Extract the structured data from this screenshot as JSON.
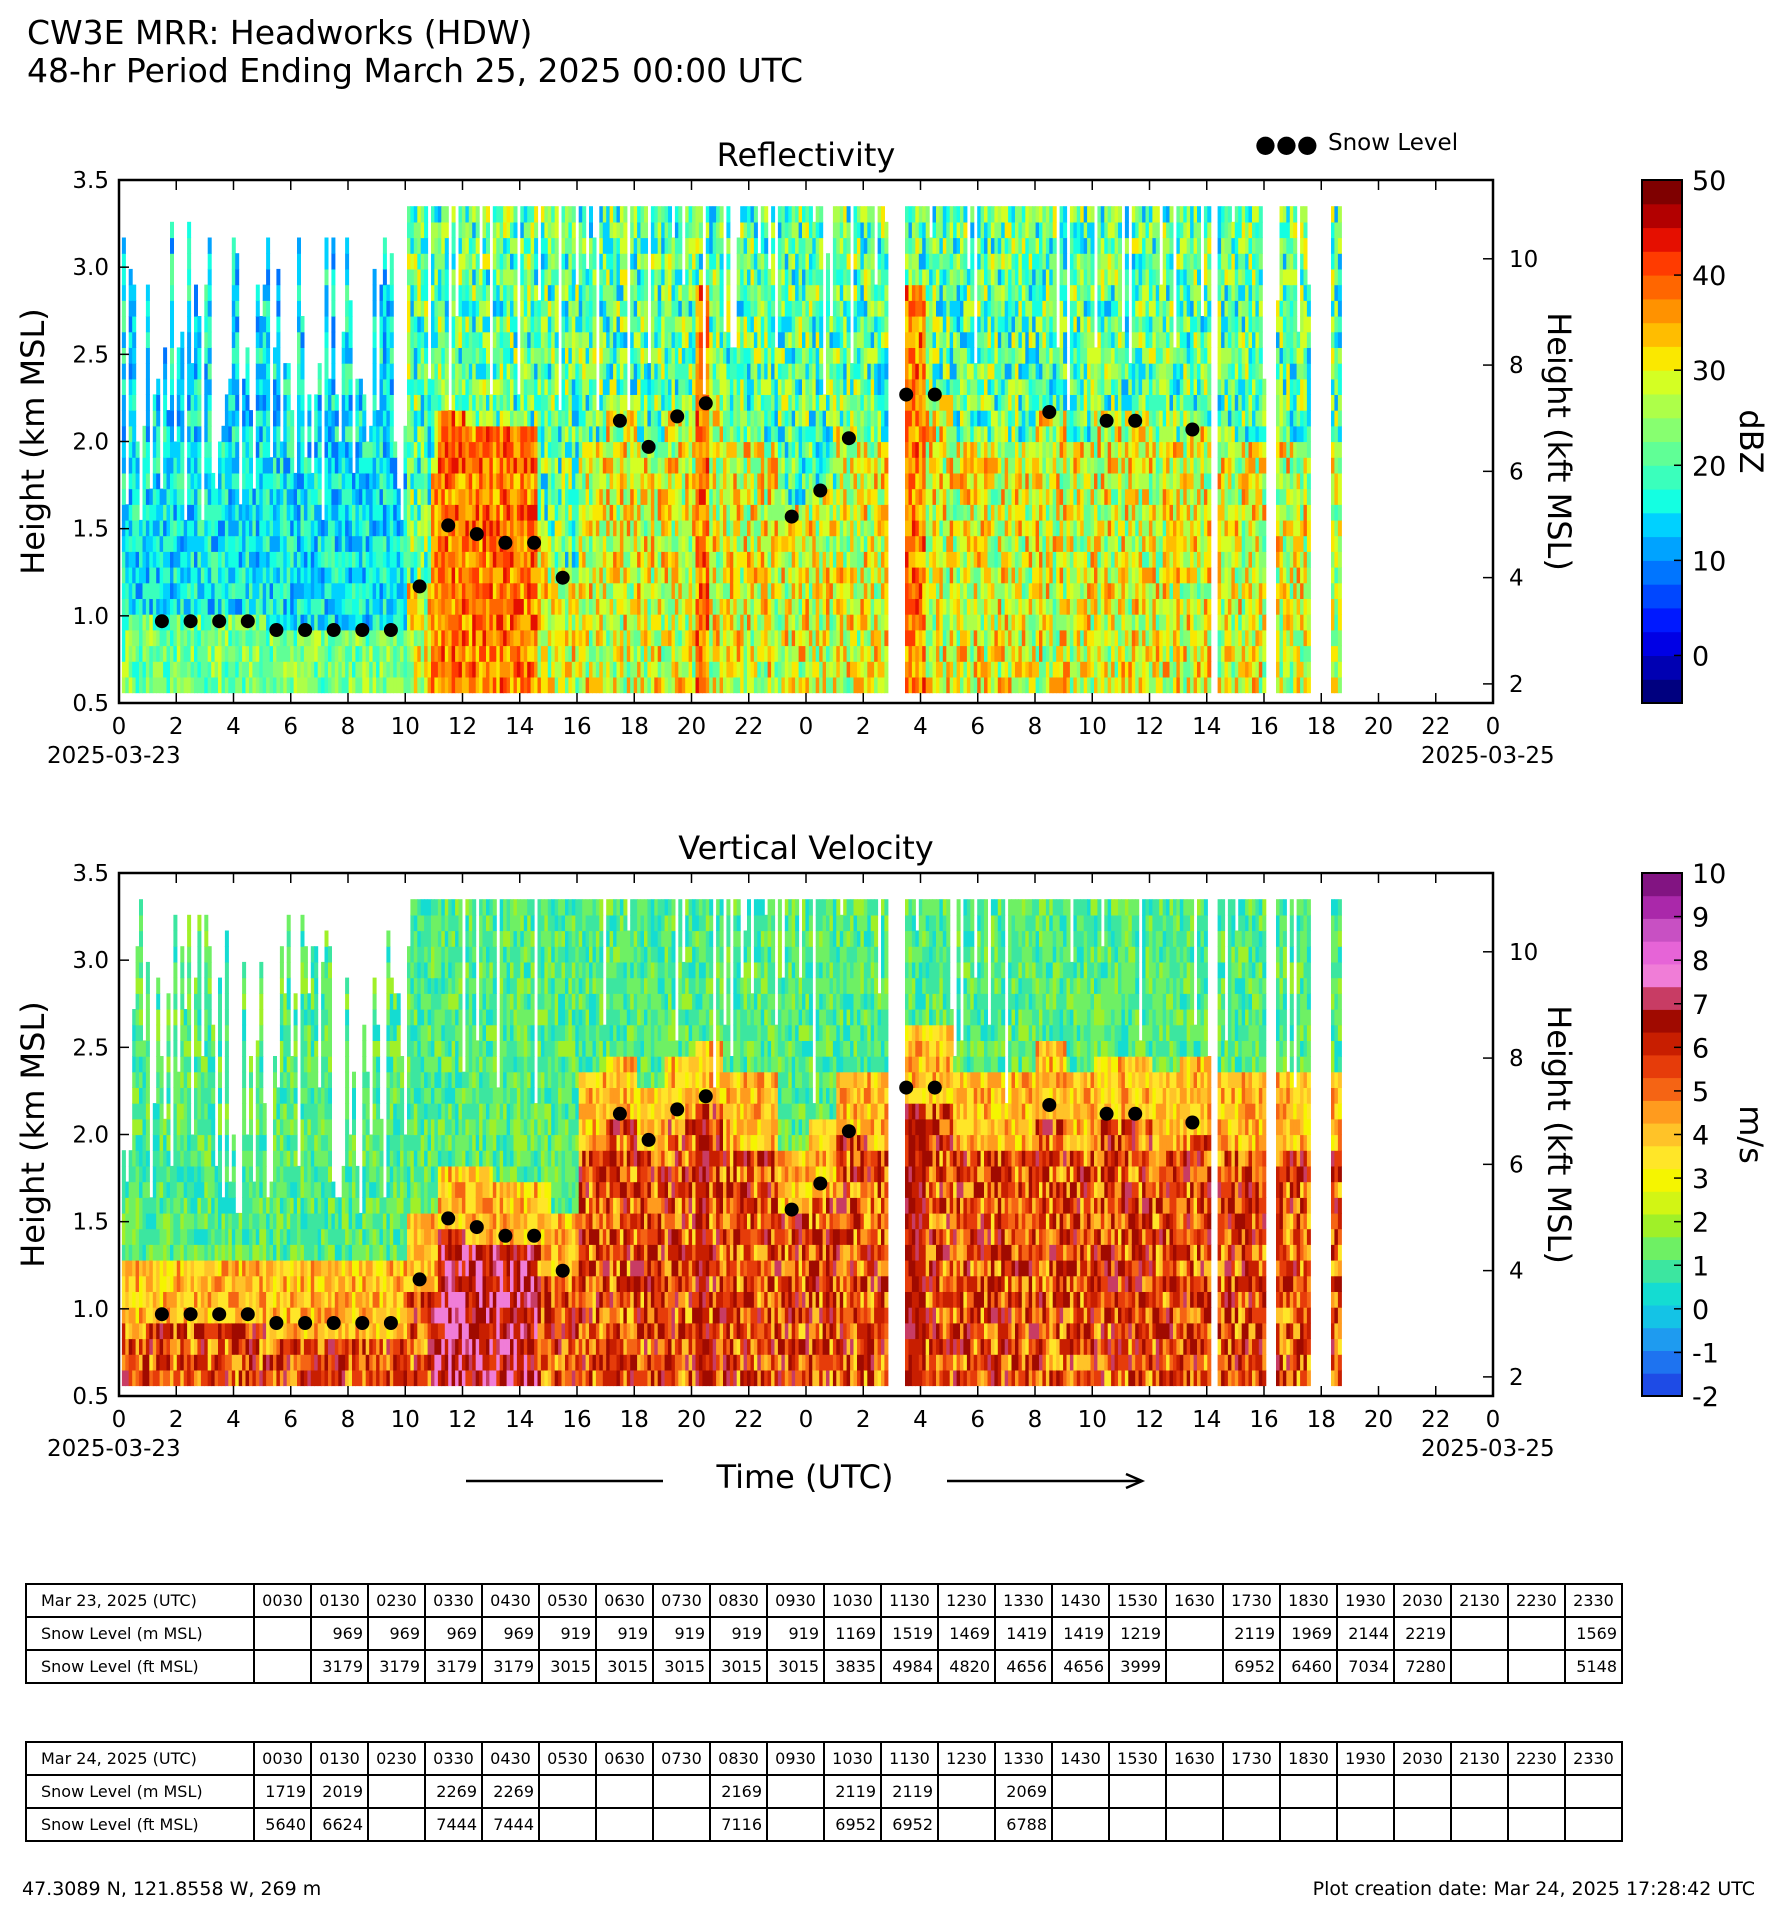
{
  "header": {
    "line1": "CW3E MRR: Headworks (HDW)",
    "line2": "48-hr Period Ending March 25, 2025 00:00 UTC"
  },
  "legend": {
    "marker": "●●●",
    "label": "Snow Level"
  },
  "x_axis": {
    "ticks": [
      "0",
      "2",
      "4",
      "6",
      "8",
      "10",
      "12",
      "14",
      "16",
      "18",
      "20",
      "22",
      "0",
      "2",
      "4",
      "6",
      "8",
      "10",
      "12",
      "14",
      "16",
      "18",
      "20",
      "22",
      "0"
    ],
    "start_date": "2025-03-23",
    "end_date": "2025-03-25",
    "label": "Time (UTC)"
  },
  "chart_data": [
    {
      "type": "heatmap",
      "title": "Reflectivity",
      "ylabel": "Height (km MSL)",
      "ylabel_right": "Height (kft MSL)",
      "ylim": [
        0.5,
        3.5
      ],
      "yticks": [
        "0.5",
        "1.0",
        "1.5",
        "2.0",
        "2.5",
        "3.0",
        "3.5"
      ],
      "yticks_right": [
        "2",
        "4",
        "6",
        "8",
        "10"
      ],
      "xlim_hours": [
        0,
        48
      ],
      "colorbar": {
        "label": "dBZ",
        "range": [
          -5,
          50
        ],
        "ticks": [
          "0",
          "10",
          "20",
          "30",
          "40",
          "50"
        ],
        "colors": [
          "#00007f",
          "#0000b2",
          "#0000e5",
          "#0019ff",
          "#0047ff",
          "#0075ff",
          "#00a3ff",
          "#00d1ff",
          "#14ffe2",
          "#3affbc",
          "#60ff96",
          "#87ff70",
          "#adff49",
          "#d4ff23",
          "#fae800",
          "#ffbd00",
          "#ff9200",
          "#ff6600",
          "#ff3b00",
          "#e50f00",
          "#b20000",
          "#7f0000"
        ]
      },
      "data_gaps_hours": [
        [
          26.8,
          27.4
        ],
        [
          38.1,
          38.3
        ],
        [
          40.1,
          40.7
        ],
        [
          38.9,
          39.3
        ],
        [
          41.5,
          42.4
        ],
        [
          48,
          48
        ]
      ],
      "high_reflectivity_spans_hours": [
        [
          10.8,
          14.6
        ],
        [
          20.1,
          20.6
        ],
        [
          27.3,
          28.1
        ]
      ],
      "note": ""
    },
    {
      "type": "heatmap",
      "title": "Vertical Velocity",
      "ylabel": "Height (km MSL)",
      "ylabel_right": "Height (kft MSL)",
      "ylim": [
        0.5,
        3.5
      ],
      "yticks": [
        "0.5",
        "1.0",
        "1.5",
        "2.0",
        "2.5",
        "3.0",
        "3.5"
      ],
      "yticks_right": [
        "2",
        "4",
        "6",
        "8",
        "10"
      ],
      "xlim_hours": [
        0,
        48
      ],
      "colorbar": {
        "label": "m/s",
        "range": [
          -2,
          10
        ],
        "ticks": [
          "-2",
          "-1",
          "0",
          "1",
          "2",
          "3",
          "4",
          "5",
          "6",
          "7",
          "8",
          "9",
          "10"
        ],
        "colors": [
          "#1e4be6",
          "#1e73f0",
          "#1e9bf0",
          "#14c3e6",
          "#14dcd2",
          "#3ce6a0",
          "#6ef064",
          "#a0f028",
          "#d2f514",
          "#f5f500",
          "#ffe628",
          "#ffc328",
          "#ff9b1e",
          "#f56414",
          "#e63c0a",
          "#c81e00",
          "#a00a00",
          "#c83c64",
          "#f07dd7",
          "#e664d7",
          "#c850c3",
          "#aa28aa",
          "#821482"
        ]
      }
    }
  ],
  "snow_level_series": {
    "name": "Snow Level",
    "hours": [
      1.5,
      2.5,
      3.5,
      4.5,
      5.5,
      6.5,
      7.5,
      8.5,
      9.5,
      10.5,
      11.5,
      12.5,
      13.5,
      14.5,
      15.5,
      17.5,
      18.5,
      19.5,
      20.5,
      23.5,
      24.5,
      25.5,
      27.5,
      28.5,
      32.5,
      34.5,
      35.5,
      37.5
    ],
    "km": [
      0.969,
      0.969,
      0.969,
      0.969,
      0.919,
      0.919,
      0.919,
      0.919,
      0.919,
      1.169,
      1.519,
      1.469,
      1.419,
      1.419,
      1.219,
      2.119,
      1.969,
      2.144,
      2.219,
      1.569,
      1.719,
      2.019,
      2.269,
      2.269,
      2.169,
      2.119,
      2.119,
      2.069
    ]
  },
  "tables": [
    {
      "date_label": "Mar 23, 2025 (UTC)",
      "times": [
        "0030",
        "0130",
        "0230",
        "0330",
        "0430",
        "0530",
        "0630",
        "0730",
        "0830",
        "0930",
        "1030",
        "1130",
        "1230",
        "1330",
        "1430",
        "1530",
        "1630",
        "1730",
        "1830",
        "1930",
        "2030",
        "2130",
        "2230",
        "2330"
      ],
      "m_label": "Snow Level (m MSL)",
      "m": [
        "",
        "969",
        "969",
        "969",
        "969",
        "919",
        "919",
        "919",
        "919",
        "919",
        "1169",
        "1519",
        "1469",
        "1419",
        "1419",
        "1219",
        "",
        "2119",
        "1969",
        "2144",
        "2219",
        "",
        "",
        "1569"
      ],
      "ft_label": "Snow Level (ft MSL)",
      "ft": [
        "",
        "3179",
        "3179",
        "3179",
        "3179",
        "3015",
        "3015",
        "3015",
        "3015",
        "3015",
        "3835",
        "4984",
        "4820",
        "4656",
        "4656",
        "3999",
        "",
        "6952",
        "6460",
        "7034",
        "7280",
        "",
        "",
        "5148"
      ]
    },
    {
      "date_label": "Mar 24, 2025 (UTC)",
      "times": [
        "0030",
        "0130",
        "0230",
        "0330",
        "0430",
        "0530",
        "0630",
        "0730",
        "0830",
        "0930",
        "1030",
        "1130",
        "1230",
        "1330",
        "1430",
        "1530",
        "1630",
        "1730",
        "1830",
        "1930",
        "2030",
        "2130",
        "2230",
        "2330"
      ],
      "m_label": "Snow Level (m MSL)",
      "m": [
        "1719",
        "2019",
        "",
        "2269",
        "2269",
        "",
        "",
        "",
        "2169",
        "",
        "2119",
        "2119",
        "",
        "2069",
        "",
        "",
        "",
        "",
        "",
        "",
        "",
        "",
        "",
        ""
      ],
      "ft_label": "Snow Level (ft MSL)",
      "ft": [
        "5640",
        "6624",
        "",
        "7444",
        "7444",
        "",
        "",
        "",
        "7116",
        "",
        "6952",
        "6952",
        "",
        "6788",
        "",
        "",
        "",
        "",
        "",
        "",
        "",
        "",
        "",
        ""
      ]
    }
  ],
  "footer": {
    "location": "47.3089 N, 121.8558 W, 269 m",
    "creation": "Plot creation date: Mar 24, 2025 17:28:42 UTC"
  }
}
